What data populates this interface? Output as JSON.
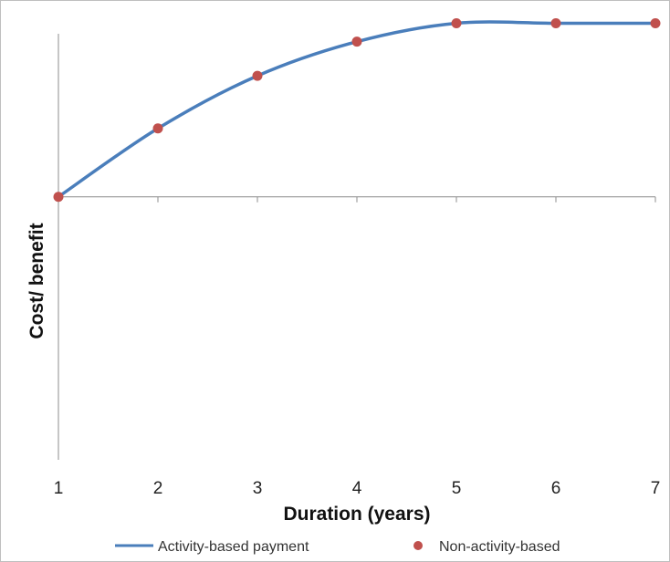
{
  "chart_data": {
    "type": "line",
    "title": "",
    "xlabel": "Duration (years)",
    "ylabel": "Cost/ benefit",
    "x": [
      1,
      2,
      3,
      4,
      5,
      6,
      7
    ],
    "xlim": [
      1,
      7
    ],
    "ylim": [
      -1,
      0.62
    ],
    "grid": false,
    "legend_position": "bottom",
    "series": [
      {
        "name": "Activity-based payment",
        "style": "line",
        "color": "#4a7ebb",
        "values": [
          0,
          0.26,
          0.46,
          0.59,
          0.66,
          0.66,
          0.66
        ]
      },
      {
        "name": "Non-activity-based",
        "style": "markers",
        "color": "#c0504d",
        "values": [
          0,
          0.26,
          0.46,
          0.59,
          0.66,
          0.66,
          0.66
        ]
      }
    ]
  }
}
